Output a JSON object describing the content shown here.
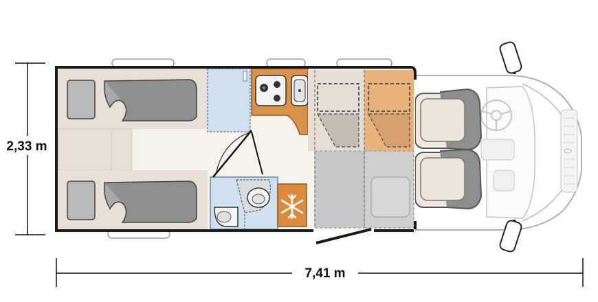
{
  "dimensions": {
    "width_label": "2,33 m",
    "length_label": "7,41 m"
  },
  "colors": {
    "wall": "#1a1a1a",
    "floor": "#f6f2ec",
    "bed_frame": "#e8e0d6",
    "mattress": "#c9c9c9",
    "blanket": "#8f8f8f",
    "cabinet_blue": "#cfe0f0",
    "kitchen_orange": "#d9924a",
    "fridge_orange": "#d98a3c",
    "seat": "#ece3d8",
    "seat_back": "#8e8e8e",
    "cab_outline": "#b8b8b8"
  },
  "icons": {
    "fridge": "snowflake-icon",
    "hob": "hob-icon",
    "sink": "sink-icon",
    "toilet": "toilet-icon",
    "wash_basin": "wash-basin-icon",
    "steering_wheel": "steering-wheel-icon"
  }
}
